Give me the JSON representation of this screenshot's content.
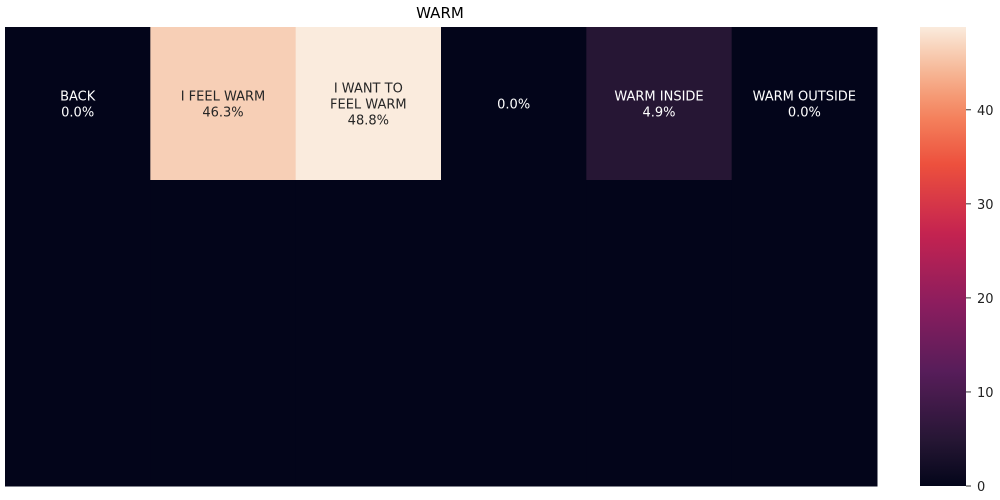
{
  "chart_data": {
    "type": "heatmap",
    "title": "WARM",
    "rows": 3,
    "cols": 6,
    "cells": [
      {
        "row": 0,
        "col": 0,
        "label": [
          "BACK",
          "0.0%"
        ],
        "value": 0.0
      },
      {
        "row": 0,
        "col": 1,
        "label": [
          "I FEEL WARM",
          "46.3%"
        ],
        "value": 46.3
      },
      {
        "row": 0,
        "col": 2,
        "label": [
          "I WANT TO",
          "FEEL WARM",
          "48.8%"
        ],
        "value": 48.8
      },
      {
        "row": 0,
        "col": 3,
        "label": [
          "0.0%"
        ],
        "value": 0.0
      },
      {
        "row": 0,
        "col": 4,
        "label": [
          "WARM INSIDE",
          "4.9%"
        ],
        "value": 4.9
      },
      {
        "row": 0,
        "col": 5,
        "label": [
          "WARM OUTSIDE",
          "0.0%"
        ],
        "value": 0.0
      },
      {
        "row": 1,
        "col": 0,
        "label": [],
        "value": 0.0
      },
      {
        "row": 1,
        "col": 1,
        "label": [],
        "value": 0.0
      },
      {
        "row": 1,
        "col": 2,
        "label": [],
        "value": 0.0
      },
      {
        "row": 1,
        "col": 3,
        "label": [],
        "value": 0.0
      },
      {
        "row": 1,
        "col": 4,
        "label": [],
        "value": 0.0
      },
      {
        "row": 1,
        "col": 5,
        "label": [],
        "value": 0.0
      },
      {
        "row": 2,
        "col": 0,
        "label": [],
        "value": 0.0
      },
      {
        "row": 2,
        "col": 1,
        "label": [],
        "value": 0.0
      },
      {
        "row": 2,
        "col": 2,
        "label": [],
        "value": 0.0
      },
      {
        "row": 2,
        "col": 3,
        "label": [],
        "value": 0.0
      },
      {
        "row": 2,
        "col": 4,
        "label": [],
        "value": 0.0
      },
      {
        "row": 2,
        "col": 5,
        "label": [],
        "value": 0.0
      }
    ],
    "colorbar": {
      "min": 0,
      "max": 48.8,
      "ticks": [
        0,
        10,
        20,
        30,
        40
      ],
      "colormap": "rocket"
    },
    "grid": false,
    "axes_ticks_visible": false
  }
}
